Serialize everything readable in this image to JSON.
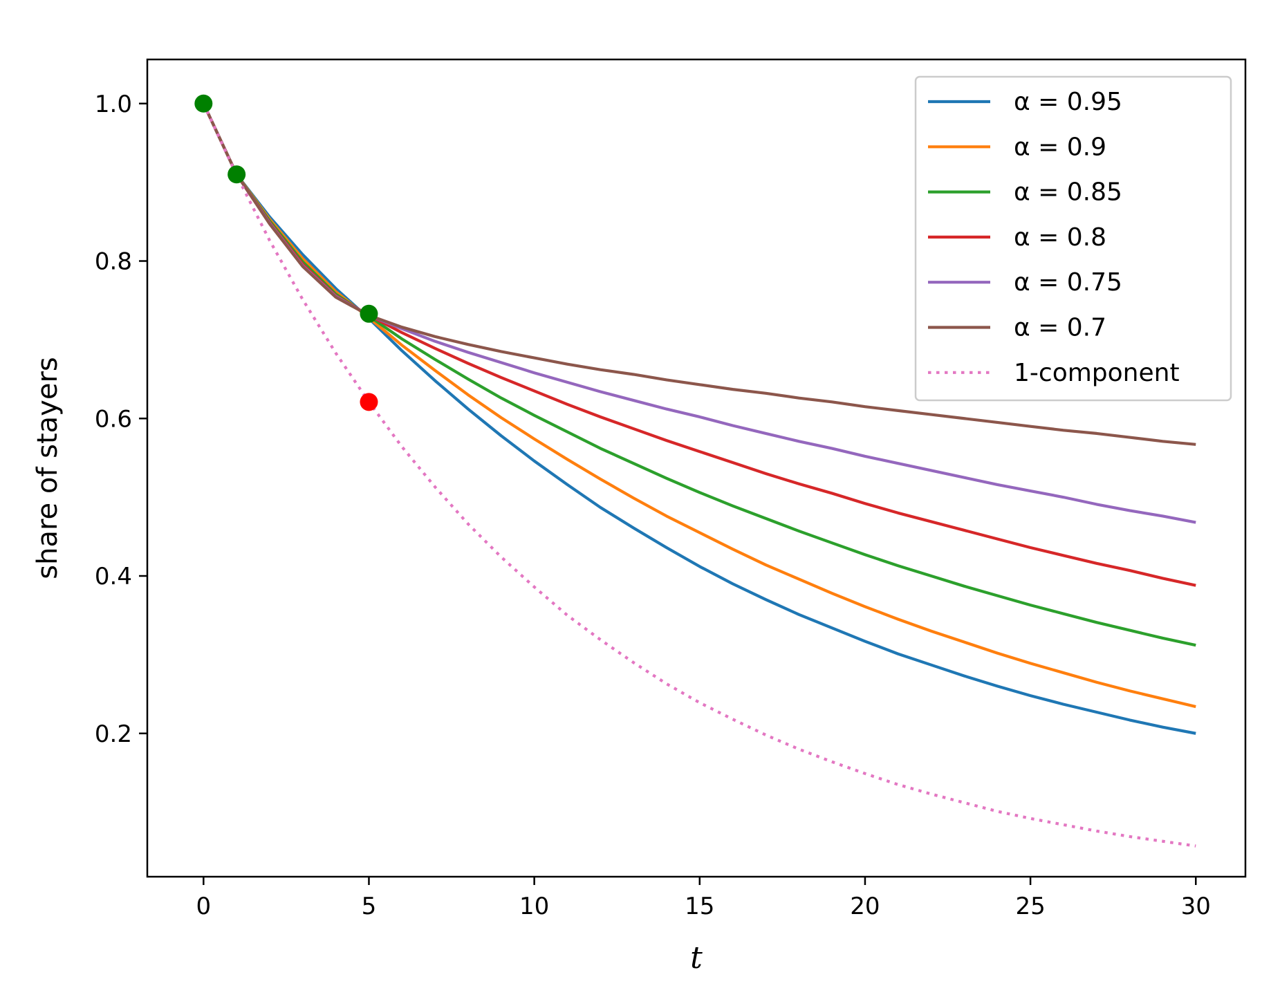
{
  "chart_data": {
    "type": "line",
    "title": "",
    "xlabel": "t",
    "ylabel": "share of stayers",
    "xlim": [
      -1.7,
      31.5
    ],
    "ylim": [
      0.018,
      1.056
    ],
    "x_ticks": [
      0,
      5,
      10,
      15,
      20,
      25,
      30
    ],
    "x_tick_labels": [
      "0",
      "5",
      "10",
      "15",
      "20",
      "25",
      "30"
    ],
    "y_ticks": [
      0.2,
      0.4,
      0.6,
      0.8,
      1.0
    ],
    "y_tick_labels": [
      "0.2",
      "0.4",
      "0.6",
      "0.8",
      "1.0"
    ],
    "legend_position": "top-right",
    "x": [
      0,
      1,
      2,
      3,
      4,
      5,
      6,
      7,
      8,
      9,
      10,
      11,
      12,
      13,
      14,
      15,
      16,
      17,
      18,
      19,
      20,
      21,
      22,
      23,
      24,
      25,
      26,
      27,
      28,
      29,
      30
    ],
    "series": [
      {
        "name": "α = 0.95",
        "color": "#1f77b4",
        "style": "solid",
        "values": [
          1.0,
          0.91,
          0.856,
          0.808,
          0.765,
          0.727,
          0.686,
          0.648,
          0.612,
          0.578,
          0.546,
          0.516,
          0.487,
          0.461,
          0.436,
          0.412,
          0.39,
          0.37,
          0.351,
          0.334,
          0.317,
          0.301,
          0.287,
          0.273,
          0.26,
          0.248,
          0.237,
          0.227,
          0.217,
          0.208,
          0.2
        ]
      },
      {
        "name": "α = 0.9",
        "color": "#ff7f0e",
        "style": "solid",
        "values": [
          1.0,
          0.91,
          0.853,
          0.803,
          0.761,
          0.728,
          0.693,
          0.661,
          0.63,
          0.601,
          0.574,
          0.548,
          0.523,
          0.499,
          0.476,
          0.455,
          0.434,
          0.414,
          0.396,
          0.378,
          0.361,
          0.345,
          0.33,
          0.316,
          0.302,
          0.289,
          0.277,
          0.265,
          0.254,
          0.244,
          0.234
        ]
      },
      {
        "name": "α = 0.85",
        "color": "#2ca02c",
        "style": "solid",
        "values": [
          1.0,
          0.91,
          0.851,
          0.799,
          0.758,
          0.73,
          0.701,
          0.675,
          0.65,
          0.626,
          0.604,
          0.583,
          0.562,
          0.543,
          0.524,
          0.506,
          0.489,
          0.473,
          0.457,
          0.442,
          0.427,
          0.413,
          0.4,
          0.387,
          0.375,
          0.363,
          0.352,
          0.341,
          0.331,
          0.321,
          0.312
        ]
      },
      {
        "name": "α = 0.8",
        "color": "#d62728",
        "style": "solid",
        "values": [
          1.0,
          0.91,
          0.849,
          0.796,
          0.756,
          0.731,
          0.709,
          0.689,
          0.67,
          0.652,
          0.635,
          0.618,
          0.602,
          0.587,
          0.572,
          0.558,
          0.544,
          0.53,
          0.517,
          0.505,
          0.492,
          0.48,
          0.469,
          0.458,
          0.447,
          0.436,
          0.426,
          0.416,
          0.407,
          0.397,
          0.388
        ]
      },
      {
        "name": "α = 0.75",
        "color": "#9467bd",
        "style": "solid",
        "values": [
          1.0,
          0.91,
          0.848,
          0.794,
          0.755,
          0.731,
          0.714,
          0.698,
          0.684,
          0.671,
          0.658,
          0.646,
          0.634,
          0.623,
          0.612,
          0.602,
          0.591,
          0.581,
          0.571,
          0.562,
          0.552,
          0.543,
          0.534,
          0.525,
          0.516,
          0.508,
          0.5,
          0.491,
          0.483,
          0.476,
          0.468
        ]
      },
      {
        "name": "α = 0.7",
        "color": "#8c564b",
        "style": "solid",
        "values": [
          1.0,
          0.91,
          0.847,
          0.793,
          0.754,
          0.731,
          0.716,
          0.704,
          0.694,
          0.685,
          0.677,
          0.669,
          0.662,
          0.656,
          0.649,
          0.643,
          0.637,
          0.632,
          0.626,
          0.621,
          0.615,
          0.61,
          0.605,
          0.6,
          0.595,
          0.59,
          0.585,
          0.581,
          0.576,
          0.571,
          0.567
        ]
      },
      {
        "name": "1-component",
        "color": "#e377c2",
        "style": "dotted",
        "values": [
          1.0,
          0.909,
          0.826,
          0.751,
          0.683,
          0.621,
          0.564,
          0.513,
          0.466,
          0.424,
          0.386,
          0.35,
          0.319,
          0.29,
          0.263,
          0.239,
          0.218,
          0.198,
          0.18,
          0.164,
          0.149,
          0.135,
          0.123,
          0.112,
          0.101,
          0.092,
          0.084,
          0.076,
          0.069,
          0.063,
          0.057
        ]
      }
    ],
    "markers": [
      {
        "x": 0,
        "y": 1.0,
        "color": "#008000"
      },
      {
        "x": 1,
        "y": 0.91,
        "color": "#008000"
      },
      {
        "x": 5,
        "y": 0.733,
        "color": "#008000"
      },
      {
        "x": 5,
        "y": 0.621,
        "color": "#ff0000"
      }
    ]
  }
}
